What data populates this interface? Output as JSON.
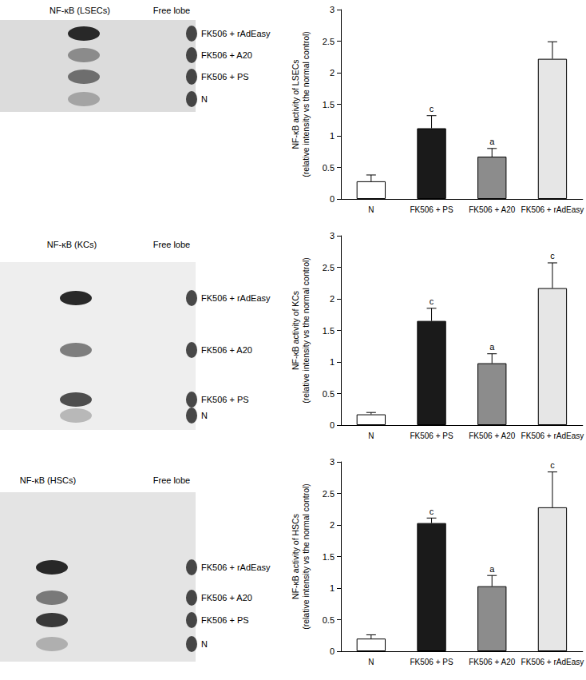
{
  "chart_data": [
    {
      "type": "bar",
      "ylabel": "NF-κB activity of LSECs\n(relative intensity vs the normal control)",
      "categories": [
        "N",
        "FK506 + PS",
        "FK506 + A20",
        "FK506 + rAdEasy"
      ],
      "values": [
        0.28,
        1.12,
        0.67,
        2.22
      ],
      "errors": [
        0.1,
        0.2,
        0.13,
        0.27
      ],
      "annotations": [
        null,
        "c",
        "a",
        null
      ],
      "colors": [
        "#ffffff",
        "#1a1a1a",
        "#8c8c8c",
        "#e6e6e6"
      ],
      "ylim": [
        0,
        3
      ],
      "yticks": [
        0,
        0.5,
        1,
        1.5,
        2,
        2.5,
        3
      ],
      "grid": false
    },
    {
      "type": "bar",
      "ylabel": "NF-κB activity of KCs\n(relative intensity vs the normal control)",
      "categories": [
        "N",
        "FK506 + PS",
        "FK506 + A20",
        "FK506 + rAdEasy"
      ],
      "values": [
        0.17,
        1.65,
        0.98,
        2.17
      ],
      "errors": [
        0.03,
        0.2,
        0.15,
        0.4
      ],
      "annotations": [
        null,
        "c",
        "a",
        "c"
      ],
      "colors": [
        "#ffffff",
        "#1a1a1a",
        "#8c8c8c",
        "#e6e6e6"
      ],
      "ylim": [
        0,
        3
      ],
      "yticks": [
        0,
        0.5,
        1,
        1.5,
        2,
        2.5,
        3
      ],
      "grid": false
    },
    {
      "type": "bar",
      "ylabel": "NF-κB activity of HSCs\n(relative intensity vs the normal control)",
      "categories": [
        "N",
        "FK506 + PS",
        "FK506 + A20",
        "FK506 + rAdEasy"
      ],
      "values": [
        0.2,
        2.03,
        1.03,
        2.28
      ],
      "errors": [
        0.06,
        0.08,
        0.17,
        0.56
      ],
      "annotations": [
        null,
        "c",
        "a",
        "c"
      ],
      "colors": [
        "#ffffff",
        "#1a1a1a",
        "#8c8c8c",
        "#e6e6e6"
      ],
      "ylim": [
        0,
        3
      ],
      "yticks": [
        0,
        0.5,
        1,
        1.5,
        2,
        2.5,
        3
      ],
      "grid": false
    }
  ],
  "gels": [
    {
      "title": "NF-κB (LSECs)",
      "free_label": "Free lobe",
      "lanes": [
        "FK506 + rAdEasy",
        "FK506 + A20",
        "FK506 + PS",
        "N"
      ]
    },
    {
      "title": "NF-κB (KCs)",
      "free_label": "Free lobe",
      "lanes": [
        "FK506 + rAdEasy",
        "FK506 + A20",
        "FK506 + PS",
        "N"
      ]
    },
    {
      "title": "NF-κB (HSCs)",
      "free_label": "Free lobe",
      "lanes": [
        "FK506 + rAdEasy",
        "FK506 + A20",
        "FK506 + PS",
        "N"
      ]
    }
  ]
}
